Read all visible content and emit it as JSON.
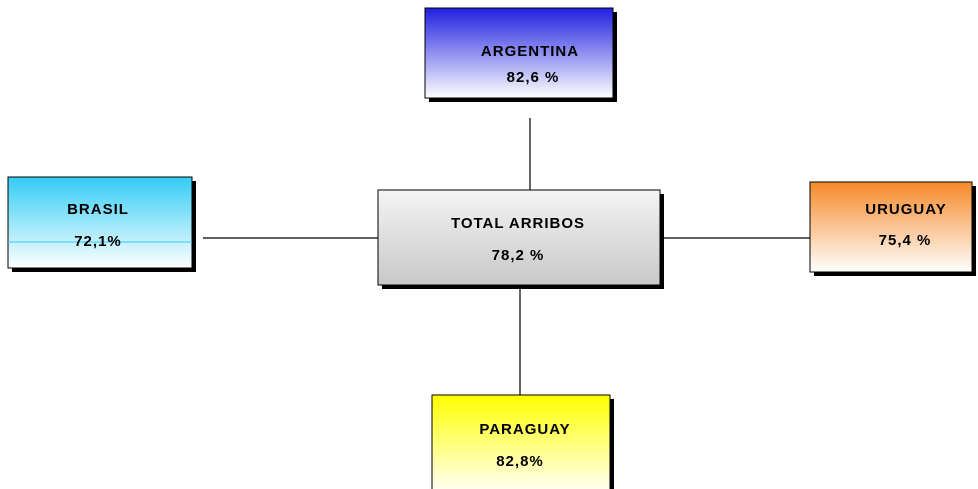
{
  "nodes": [
    {
      "label": "TOTAL ARRIBOS",
      "value": "78,2 %"
    },
    {
      "label": "ARGENTINA",
      "value": "82,6 %"
    },
    {
      "label": "BRASIL",
      "value": "72,1%"
    },
    {
      "label": "URUGUAY",
      "value": "75,4 %"
    },
    {
      "label": "PARAGUAY",
      "value": "82,8%"
    }
  ]
}
